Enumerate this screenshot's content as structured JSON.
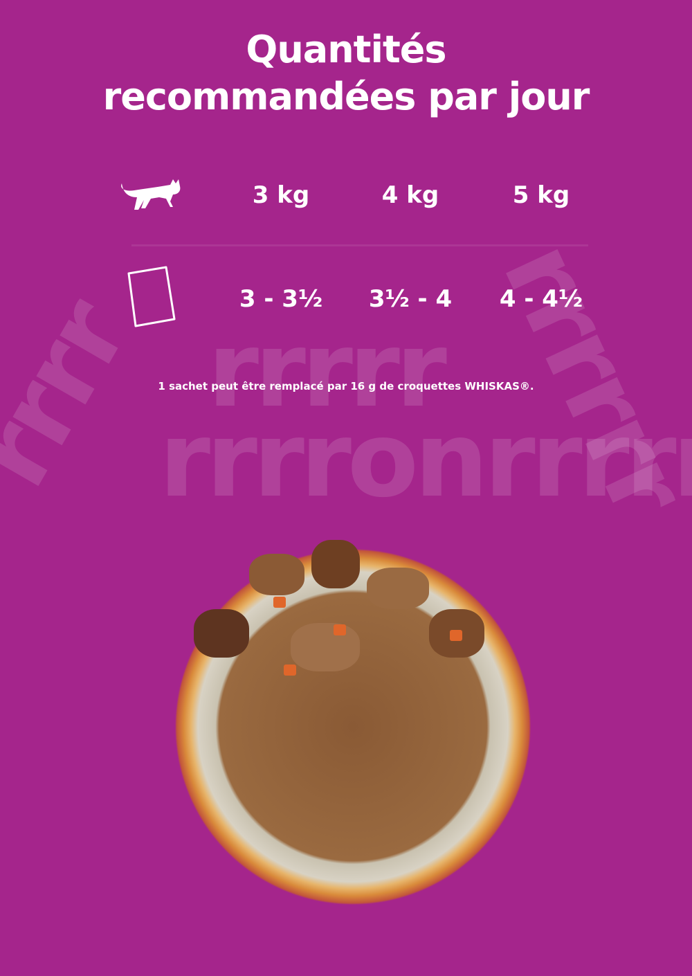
{
  "title_line1": "Quantités",
  "title_line2": "recommandées par jour",
  "background_text": "rrrronrrrrrr",
  "table": {
    "header_icon": "cat-icon",
    "row_icon": "pouch-icon",
    "weights": [
      "3 kg",
      "4 kg",
      "5 kg"
    ],
    "pouches": [
      "3 - 3½",
      "3½ - 4",
      "4 - 4½"
    ]
  },
  "note": "1 sachet peut être remplacé par 16 g de croquettes WHISKAS®.",
  "colors": {
    "background": "#a5258c",
    "text": "#ffffff"
  }
}
